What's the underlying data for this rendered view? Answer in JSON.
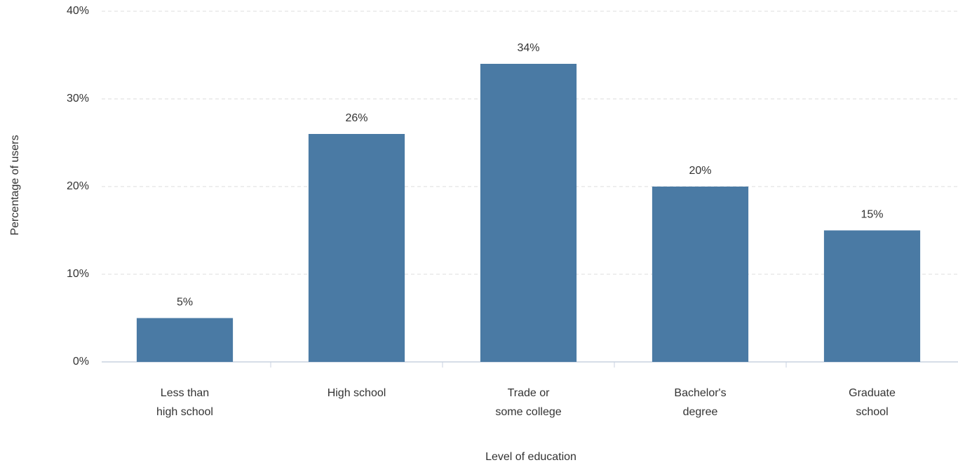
{
  "chart_data": {
    "type": "bar",
    "x_label": "Level of education",
    "y_label": "Percentage of users",
    "categories": [
      "Less than\nhigh school",
      "High school",
      "Trade or\nsome college",
      "Bachelor's\ndegree",
      "Graduate\nschool"
    ],
    "values": [
      5,
      26,
      34,
      20,
      15
    ],
    "value_labels": [
      "5%",
      "26%",
      "34%",
      "20%",
      "15%"
    ],
    "color": "#4a7aa4",
    "ylim": [
      0,
      40
    ],
    "yticks": [
      {
        "value": 0,
        "label": "0%"
      },
      {
        "value": 10,
        "label": "10%"
      },
      {
        "value": 20,
        "label": "20%"
      },
      {
        "value": 30,
        "label": "30%"
      },
      {
        "value": 40,
        "label": "40%"
      }
    ],
    "grid": true
  }
}
